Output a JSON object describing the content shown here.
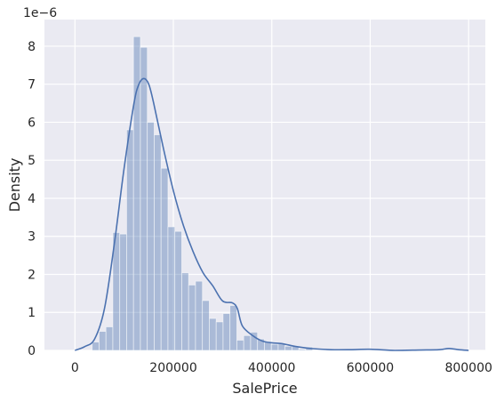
{
  "chart_data": {
    "type": "histogram_with_kde",
    "xlabel": "SalePrice",
    "ylabel": "Density",
    "y_offset_label": "1e−6",
    "y_scale": 1e-06,
    "xlim": [
      -62000,
      834000
    ],
    "ylim": [
      0,
      8.7
    ],
    "xticks": [
      0,
      200000,
      400000,
      600000,
      800000
    ],
    "xtick_labels": [
      "0",
      "200000",
      "400000",
      "600000",
      "800000"
    ],
    "yticks": [
      0,
      1,
      2,
      3,
      4,
      5,
      6,
      7,
      8
    ],
    "ytick_labels": [
      "0",
      "1",
      "2",
      "3",
      "4",
      "5",
      "6",
      "7",
      "8"
    ],
    "grid": true,
    "colors": {
      "background": "#eaeaf2",
      "grid": "#ffffff",
      "bar": "#4c72b0",
      "bar_opacity": 0.4,
      "kde": "#4c72b0"
    },
    "histogram": {
      "bin_start": 35000,
      "bin_width": 14000,
      "densities": [
        0.22,
        0.5,
        0.62,
        3.1,
        3.06,
        5.8,
        8.25,
        7.97,
        6.0,
        5.67,
        4.79,
        3.25,
        3.13,
        2.04,
        1.72,
        1.82,
        1.31,
        0.84,
        0.75,
        0.97,
        1.18,
        0.27,
        0.39,
        0.48,
        0.3,
        0.22,
        0.16,
        0.17,
        0.11,
        0.11,
        0.03,
        0.09,
        0.0,
        0.0,
        0.02,
        0.02,
        0.0,
        0.01,
        0.0,
        0.0,
        0.0,
        0.0,
        0.0,
        0.0,
        0.0,
        0.0,
        0.0,
        0.0,
        0.0,
        0.0,
        0.02,
        0.0
      ]
    },
    "kde": {
      "x": [
        0,
        20000,
        40000,
        60000,
        80000,
        100000,
        120000,
        130000,
        140000,
        150000,
        160000,
        180000,
        200000,
        220000,
        240000,
        260000,
        280000,
        300000,
        320000,
        330000,
        340000,
        360000,
        380000,
        400000,
        420000,
        450000,
        480000,
        520000,
        560000,
        600000,
        650000,
        700000,
        740000,
        760000,
        780000,
        800000
      ],
      "y": [
        0.0,
        0.1,
        0.3,
        1.1,
        2.8,
        4.8,
        6.5,
        7.0,
        7.15,
        7.0,
        6.5,
        5.3,
        4.2,
        3.3,
        2.6,
        2.05,
        1.7,
        1.3,
        1.25,
        1.1,
        0.65,
        0.4,
        0.25,
        0.2,
        0.18,
        0.1,
        0.05,
        0.02,
        0.02,
        0.03,
        0.0,
        0.01,
        0.02,
        0.05,
        0.02,
        0.0
      ]
    }
  }
}
